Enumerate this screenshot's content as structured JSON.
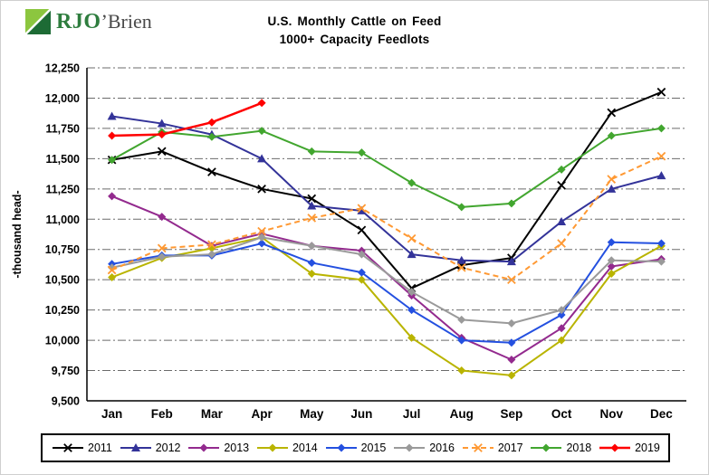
{
  "logo": {
    "primary": "RJO",
    "secondary": "’Brien"
  },
  "chart_data": {
    "type": "line",
    "title": "U.S. Monthly Cattle on Feed",
    "subtitle": "1000+ Capacity Feedlots",
    "ylabel": "-thousand head-",
    "xlabel": "",
    "ylim": [
      9500,
      12250
    ],
    "ytick_step": 250,
    "grid": "horizontal dash-dot",
    "legend_position": "bottom",
    "categories": [
      "Jan",
      "Feb",
      "Mar",
      "Apr",
      "May",
      "Jun",
      "Jul",
      "Aug",
      "Sep",
      "Oct",
      "Nov",
      "Dec"
    ],
    "series": [
      {
        "name": "2011",
        "color": "#000000",
        "marker": "x",
        "values": [
          11490,
          11560,
          11390,
          11250,
          11170,
          10910,
          10430,
          10620,
          10680,
          11280,
          11880,
          12050
        ]
      },
      {
        "name": "2012",
        "color": "#333399",
        "marker": "triangle",
        "values": [
          11850,
          11790,
          11700,
          11500,
          11110,
          11070,
          10710,
          10660,
          10650,
          10980,
          11250,
          11360
        ]
      },
      {
        "name": "2013",
        "color": "#932a8e",
        "marker": "diamond",
        "values": [
          11190,
          11020,
          10780,
          10880,
          10780,
          10740,
          10370,
          10020,
          9840,
          10100,
          10610,
          10670
        ]
      },
      {
        "name": "2014",
        "color": "#b9b400",
        "marker": "diamond",
        "values": [
          10520,
          10680,
          10760,
          10850,
          10550,
          10500,
          10020,
          9750,
          9710,
          10000,
          10550,
          10780
        ]
      },
      {
        "name": "2015",
        "color": "#2450e0",
        "marker": "diamond",
        "values": [
          10630,
          10700,
          10700,
          10800,
          10640,
          10560,
          10250,
          10000,
          9980,
          10210,
          10810,
          10800
        ]
      },
      {
        "name": "2016",
        "color": "#9a9a9a",
        "marker": "diamond",
        "values": [
          10600,
          10690,
          10710,
          10850,
          10780,
          10710,
          10400,
          10170,
          10140,
          10250,
          10660,
          10650
        ]
      },
      {
        "name": "2017",
        "color": "#ff9933",
        "marker": "x",
        "dash": "6 4",
        "values": [
          10580,
          10760,
          10790,
          10900,
          11010,
          11090,
          10840,
          10600,
          10500,
          10800,
          11330,
          11520
        ]
      },
      {
        "name": "2018",
        "color": "#42a62f",
        "marker": "diamond",
        "values": [
          11490,
          11720,
          11680,
          11730,
          11560,
          11550,
          11300,
          11100,
          11130,
          11410,
          11690,
          11750
        ]
      },
      {
        "name": "2019",
        "color": "#ff0000",
        "marker": "diamond",
        "line_width": 2.5,
        "values": [
          11690,
          11700,
          11800,
          11960
        ]
      }
    ]
  }
}
